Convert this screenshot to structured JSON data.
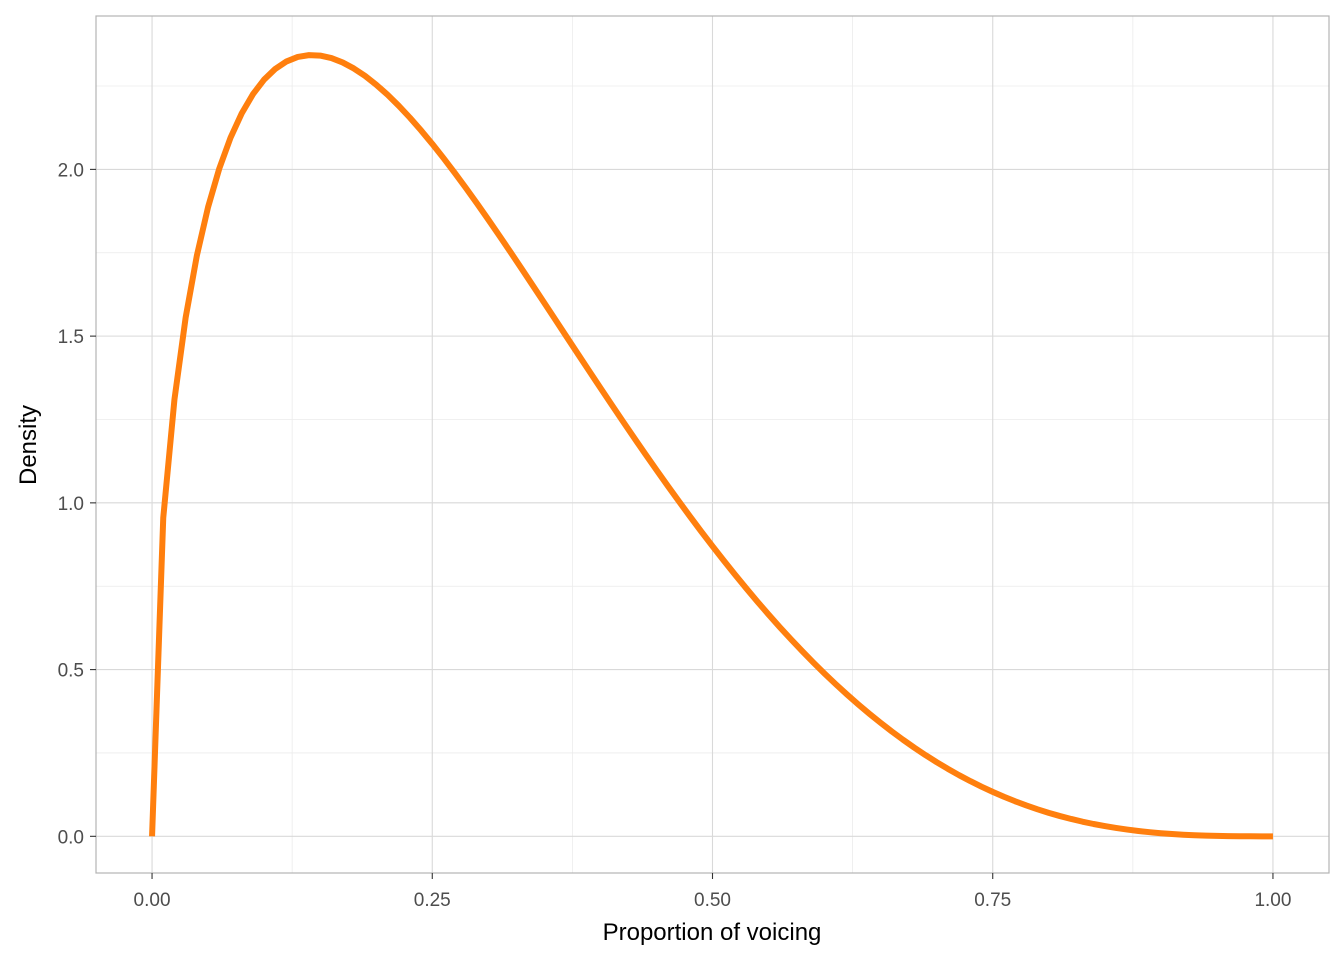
{
  "chart_data": {
    "type": "line",
    "title": "",
    "xlabel": "Proportion of voicing",
    "ylabel": "Density",
    "xlim": [
      -0.05,
      1.05
    ],
    "ylim": [
      -0.11,
      2.46
    ],
    "x_ticks": [
      0,
      0.25,
      0.5,
      0.75,
      1
    ],
    "x_tick_labels": [
      "0.00",
      "0.25",
      "0.50",
      "0.75",
      "1.00"
    ],
    "y_ticks": [
      0,
      0.5,
      1,
      1.5,
      2
    ],
    "y_tick_labels": [
      "0.0",
      "0.5",
      "1.0",
      "1.5",
      "2.0"
    ],
    "grid": true,
    "legend": "none",
    "series": [
      {
        "color": "#FF7F0E",
        "distribution": "beta",
        "shape1": 1.5,
        "shape2": 4,
        "x_from": 0,
        "x_to": 1,
        "n_points": 101
      }
    ]
  }
}
